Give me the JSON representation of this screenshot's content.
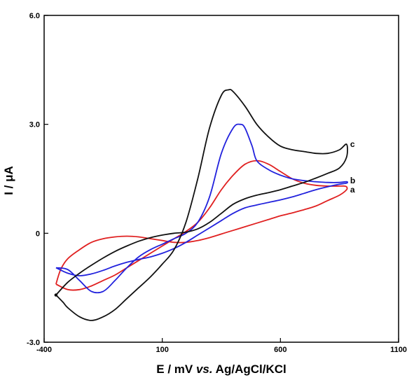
{
  "chart_data": {
    "type": "line",
    "title": "",
    "xlabel_parts": [
      "E / mV ",
      "vs.",
      " Ag/AgCl/KCl"
    ],
    "ylabel": "I / μA",
    "xlim": [
      -400,
      1100
    ],
    "ylim": [
      -3.0,
      6.0
    ],
    "xticks": [
      -400,
      100,
      600,
      1100
    ],
    "xtick_labels": [
      "-400",
      "100",
      "600",
      "1100"
    ],
    "yticks": [
      -3.0,
      0,
      3.0,
      6.0
    ],
    "ytick_labels": [
      "-3.0",
      "0",
      "3.0",
      "6.0"
    ],
    "grid": false,
    "legend": "none",
    "series": [
      {
        "name": "a",
        "color": "#e02020",
        "x": [
          -350,
          -300,
          -250,
          -200,
          -150,
          -100,
          -50,
          0,
          50,
          100,
          150,
          200,
          250,
          300,
          350,
          400,
          450,
          500,
          550,
          600,
          650,
          700,
          750,
          800,
          850,
          870,
          880,
          880,
          850,
          800,
          750,
          700,
          650,
          600,
          550,
          500,
          450,
          400,
          350,
          300,
          250,
          200,
          150,
          100,
          50,
          0,
          -50,
          -100,
          -150,
          -200,
          -250,
          -300,
          -330,
          -350
        ],
        "y": [
          -1.4,
          -1.55,
          -1.55,
          -1.45,
          -1.3,
          -1.15,
          -0.95,
          -0.75,
          -0.55,
          -0.35,
          -0.15,
          0.05,
          0.3,
          0.7,
          1.2,
          1.6,
          1.9,
          2.0,
          1.9,
          1.7,
          1.5,
          1.38,
          1.32,
          1.3,
          1.3,
          1.3,
          1.28,
          1.2,
          1.05,
          0.9,
          0.75,
          0.65,
          0.56,
          0.48,
          0.38,
          0.28,
          0.18,
          0.08,
          -0.02,
          -0.12,
          -0.2,
          -0.25,
          -0.25,
          -0.2,
          -0.15,
          -0.1,
          -0.08,
          -0.1,
          -0.15,
          -0.25,
          -0.45,
          -0.7,
          -1.0,
          -1.4
        ]
      },
      {
        "name": "b",
        "color": "#2222dd",
        "x": [
          -350,
          -300,
          -250,
          -200,
          -150,
          -100,
          -50,
          0,
          50,
          100,
          150,
          200,
          250,
          300,
          350,
          400,
          430,
          450,
          480,
          500,
          550,
          600,
          650,
          700,
          750,
          800,
          850,
          880,
          880,
          850,
          800,
          750,
          700,
          650,
          600,
          550,
          500,
          450,
          400,
          350,
          300,
          250,
          200,
          150,
          100,
          50,
          0,
          -50,
          -100,
          -150,
          -200,
          -250,
          -300,
          -350
        ],
        "y": [
          -0.95,
          -1.0,
          -1.3,
          -1.6,
          -1.6,
          -1.3,
          -0.95,
          -0.65,
          -0.45,
          -0.3,
          -0.15,
          0.0,
          0.3,
          1.0,
          2.2,
          2.9,
          3.0,
          2.9,
          2.4,
          2.0,
          1.75,
          1.6,
          1.5,
          1.45,
          1.42,
          1.4,
          1.4,
          1.42,
          1.38,
          1.35,
          1.28,
          1.2,
          1.1,
          1.0,
          0.92,
          0.85,
          0.78,
          0.7,
          0.55,
          0.35,
          0.15,
          -0.05,
          -0.25,
          -0.42,
          -0.55,
          -0.65,
          -0.72,
          -0.8,
          -0.9,
          -1.02,
          -1.12,
          -1.17,
          -1.1,
          -0.95
        ]
      },
      {
        "name": "c",
        "color": "#111111",
        "x": [
          -350,
          -320,
          -300,
          -250,
          -200,
          -150,
          -100,
          -50,
          0,
          50,
          100,
          150,
          200,
          250,
          300,
          350,
          380,
          400,
          450,
          500,
          550,
          600,
          650,
          700,
          750,
          800,
          850,
          880,
          880,
          850,
          800,
          750,
          700,
          650,
          600,
          550,
          500,
          450,
          400,
          350,
          300,
          250,
          200,
          150,
          100,
          50,
          0,
          -50,
          -100,
          -150,
          -200,
          -250,
          -300,
          -350
        ],
        "y": [
          -1.7,
          -1.9,
          -2.05,
          -2.3,
          -2.4,
          -2.3,
          -2.1,
          -1.8,
          -1.5,
          -1.2,
          -0.85,
          -0.45,
          0.3,
          1.5,
          2.9,
          3.8,
          3.95,
          3.9,
          3.5,
          3.0,
          2.65,
          2.4,
          2.3,
          2.25,
          2.2,
          2.2,
          2.3,
          2.45,
          2.1,
          1.8,
          1.65,
          1.52,
          1.4,
          1.3,
          1.2,
          1.12,
          1.05,
          0.95,
          0.8,
          0.55,
          0.3,
          0.12,
          0.03,
          0.0,
          -0.05,
          -0.12,
          -0.22,
          -0.35,
          -0.5,
          -0.68,
          -0.88,
          -1.1,
          -1.35,
          -1.7
        ]
      }
    ],
    "curve_labels": [
      {
        "text": "a",
        "x": 895,
        "y": 1.2
      },
      {
        "text": "b",
        "x": 895,
        "y": 1.45
      },
      {
        "text": "c",
        "x": 895,
        "y": 2.45
      }
    ]
  }
}
